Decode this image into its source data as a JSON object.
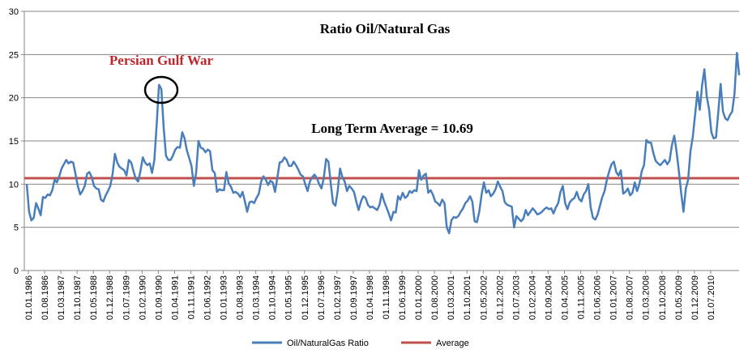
{
  "chart_data": {
    "type": "line",
    "title": "Ratio Oil/Natural Gas",
    "xlabel": "",
    "ylabel": "",
    "ylim": [
      0,
      30
    ],
    "yticks": [
      0,
      5,
      10,
      15,
      20,
      25,
      30
    ],
    "grid": true,
    "legend_position": "bottom",
    "x_tick_labels": [
      "01.01.1986",
      "01.08.1986",
      "01.03.1987",
      "01.10.1987",
      "01.05.1988",
      "01.12.1988",
      "01.07.1989",
      "01.02.1990",
      "01.09.1990",
      "01.04.1991",
      "01.11.1991",
      "01.06.1992",
      "01.01.1993",
      "01.08.1993",
      "01.03.1994",
      "01.10.1994",
      "01.05.1995",
      "01.12.1995",
      "01.07.1996",
      "01.02.1997",
      "01.09.1997",
      "01.04.1998",
      "01.11.1998",
      "01.06.1999",
      "01.01.2000",
      "01.08.2000",
      "01.03.2001",
      "01.10.2001",
      "01.05.2002",
      "01.12.2002",
      "01.07.2003",
      "01.02.2004",
      "01.09.2004",
      "01.04.2005",
      "01.11.2005",
      "01.06.2006",
      "01.01.2007",
      "01.08.2007",
      "01.03.2008",
      "01.10.2008",
      "01.05.2009",
      "01.12.2009",
      "01.07.2010"
    ],
    "series": [
      {
        "name": "Oil/NaturalGas Ratio",
        "color": "#4a7ebb",
        "start": "01.01.1986",
        "values": [
          10.0,
          6.8,
          5.8,
          6.1,
          7.8,
          7.2,
          6.4,
          8.5,
          8.4,
          8.8,
          8.7,
          9.3,
          10.5,
          10.2,
          10.9,
          11.8,
          12.3,
          12.8,
          12.4,
          12.6,
          12.5,
          11.2,
          9.8,
          8.8,
          9.2,
          9.8,
          11.2,
          11.4,
          10.8,
          9.8,
          9.5,
          9.4,
          8.2,
          8.0,
          8.7,
          9.2,
          9.8,
          11.2,
          13.5,
          12.5,
          12.0,
          11.8,
          11.6,
          11.0,
          12.8,
          12.5,
          11.5,
          10.6,
          10.3,
          11.5,
          13.1,
          12.5,
          12.2,
          12.4,
          11.3,
          12.8,
          17.0,
          21.5,
          21.0,
          16.5,
          13.3,
          12.8,
          12.8,
          13.3,
          14.0,
          14.3,
          14.2,
          16.0,
          15.3,
          13.9,
          13.0,
          12.1,
          9.8,
          11.3,
          15.0,
          14.2,
          14.1,
          13.7,
          14.0,
          13.8,
          11.6,
          11.3,
          9.1,
          9.4,
          9.3,
          9.3,
          11.4,
          10.1,
          9.7,
          9.0,
          9.1,
          8.9,
          8.5,
          9.1,
          8.0,
          6.8,
          7.9,
          8.0,
          7.8,
          8.4,
          8.9,
          10.3,
          10.9,
          10.5,
          9.9,
          10.4,
          10.2,
          9.1,
          10.8,
          12.5,
          12.6,
          13.1,
          12.8,
          12.1,
          12.1,
          12.6,
          12.2,
          11.7,
          11.1,
          10.9,
          10.0,
          9.2,
          10.3,
          10.8,
          11.1,
          10.7,
          10.0,
          9.5,
          10.7,
          12.9,
          12.6,
          10.1,
          7.8,
          7.5,
          9.2,
          11.8,
          10.8,
          10.3,
          9.2,
          9.8,
          9.5,
          9.1,
          8.0,
          7.0,
          8.0,
          8.6,
          8.4,
          7.6,
          7.3,
          7.4,
          7.2,
          7.0,
          7.6,
          8.9,
          8.0,
          7.3,
          6.6,
          5.8,
          6.8,
          6.7,
          8.6,
          8.2,
          9.0,
          8.4,
          8.6,
          9.2,
          9.0,
          9.3,
          9.2,
          11.6,
          10.5,
          11.0,
          11.2,
          9.0,
          9.3,
          8.8,
          8.0,
          7.8,
          7.5,
          8.2,
          7.8,
          5.0,
          4.3,
          5.8,
          6.2,
          6.1,
          6.3,
          6.8,
          7.2,
          7.8,
          8.1,
          8.6,
          8.0,
          5.7,
          5.6,
          6.8,
          8.8,
          10.2,
          9.0,
          9.3,
          8.6,
          8.9,
          9.4,
          10.3,
          9.7,
          9.2,
          7.9,
          7.6,
          7.5,
          7.4,
          5.0,
          6.3,
          6.0,
          5.7,
          6.0,
          7.0,
          6.4,
          6.8,
          7.2,
          6.9,
          6.5,
          6.6,
          6.8,
          7.1,
          7.3,
          7.1,
          7.2,
          6.6,
          7.3,
          7.8,
          9.1,
          9.8,
          7.8,
          7.1,
          7.9,
          8.2,
          8.4,
          9.1,
          8.3,
          8.0,
          8.8,
          9.2,
          10.0,
          7.3,
          6.1,
          5.9,
          6.5,
          7.5,
          8.5,
          9.2,
          10.5,
          11.5,
          12.3,
          12.6,
          11.4,
          11.0,
          11.6,
          8.9,
          9.1,
          9.5,
          8.7,
          9.0,
          10.2,
          9.2,
          10.0,
          11.5,
          12.2,
          15.1,
          14.8,
          14.8,
          13.6,
          12.7,
          12.4,
          12.2,
          12.5,
          12.8,
          12.3,
          12.7,
          14.5,
          15.6,
          13.8,
          11.5,
          9.0,
          6.8,
          9.5,
          10.5,
          13.8,
          15.5,
          18.0,
          20.7,
          18.6,
          21.4,
          23.3,
          20.2,
          18.7,
          16.0,
          15.3,
          15.4,
          18.4,
          21.6,
          18.4,
          17.6,
          17.4,
          18.0,
          18.4,
          20.5,
          25.2,
          22.6
        ]
      },
      {
        "name": "Average",
        "color": "#c0504d",
        "value": 10.69
      }
    ],
    "annotations": {
      "event_label": "Persian Gulf War",
      "average_label": "Long Term Average = 10.69"
    }
  }
}
